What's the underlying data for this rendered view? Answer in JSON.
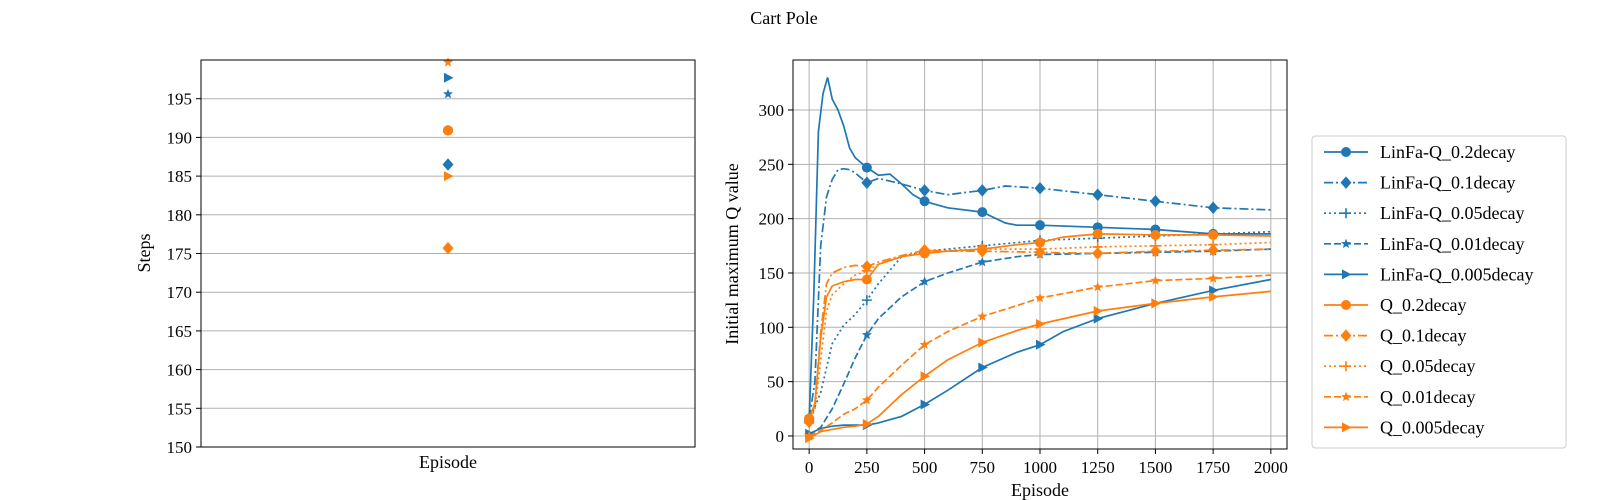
{
  "figure_title": "Cart Pole",
  "colors": {
    "blue": "#1f77b4",
    "orange": "#ff7f0e",
    "grid": "#b0b0b0"
  },
  "chart_data": [
    {
      "type": "scatter",
      "xlabel": "Episode",
      "ylabel": "Steps",
      "ylim": [
        150,
        200
      ],
      "yticks": [
        150,
        155,
        160,
        165,
        170,
        175,
        180,
        185,
        190,
        195
      ],
      "grid": "horizontal",
      "series": [
        {
          "color": "#1f77b4",
          "marker": "circle",
          "y": 190.9
        },
        {
          "color": "#1f77b4",
          "marker": "diamond",
          "y": 186.5
        },
        {
          "color": "#1f77b4",
          "marker": "plus",
          "y": 190.9
        },
        {
          "color": "#1f77b4",
          "marker": "star",
          "y": 195.6
        },
        {
          "color": "#1f77b4",
          "marker": "triangle-right",
          "y": 197.7
        },
        {
          "color": "#ff7f0e",
          "marker": "circle",
          "y": 190.9
        },
        {
          "color": "#ff7f0e",
          "marker": "diamond",
          "y": 175.7
        },
        {
          "color": "#ff7f0e",
          "marker": "plus",
          "y": 190.9
        },
        {
          "color": "#ff7f0e",
          "marker": "star",
          "y": 199.7
        },
        {
          "color": "#ff7f0e",
          "marker": "triangle-right",
          "y": 185.0
        }
      ]
    },
    {
      "type": "line",
      "xlabel": "Episode",
      "ylabel": "Initial maximum Q value",
      "xlim": [
        -70,
        2070
      ],
      "ylim": [
        -12,
        346
      ],
      "xticks": [
        0,
        250,
        500,
        750,
        1000,
        1250,
        1500,
        1750,
        2000
      ],
      "yticks": [
        0,
        50,
        100,
        150,
        200,
        250,
        300
      ],
      "grid": true,
      "legend": "outside-right",
      "series": [
        {
          "name": "LinFa-Q_0.2decay",
          "color": "#1f77b4",
          "linestyle": "solid",
          "marker": "circle",
          "x": [
            0,
            20,
            40,
            60,
            80,
            100,
            125,
            150,
            175,
            200,
            250,
            300,
            350,
            400,
            450,
            500,
            600,
            750,
            850,
            900,
            1000,
            1250,
            1500,
            1750,
            2000
          ],
          "y": [
            16,
            130,
            280,
            315,
            330,
            310,
            300,
            285,
            265,
            256,
            247,
            240,
            241,
            232,
            222,
            216,
            210,
            206,
            196,
            194,
            194,
            192,
            190,
            186,
            186
          ]
        },
        {
          "name": "LinFa-Q_0.1decay",
          "color": "#1f77b4",
          "linestyle": "dashdot",
          "marker": "diamond",
          "x": [
            0,
            25,
            50,
            75,
            100,
            125,
            150,
            175,
            200,
            250,
            300,
            400,
            500,
            600,
            750,
            850,
            1000,
            1250,
            1500,
            1750,
            2000
          ],
          "y": [
            16,
            50,
            175,
            220,
            236,
            245,
            246,
            245,
            242,
            233,
            237,
            232,
            226,
            222,
            226,
            230,
            228,
            222,
            216,
            210,
            208
          ]
        },
        {
          "name": "LinFa-Q_0.05decay",
          "color": "#1f77b4",
          "linestyle": "dotted",
          "marker": "plus",
          "x": [
            0,
            50,
            100,
            150,
            200,
            250,
            300,
            400,
            500,
            750,
            1000,
            1250,
            1500,
            1750,
            2000
          ],
          "y": [
            14,
            40,
            85,
            102,
            112,
            125,
            140,
            165,
            170,
            175,
            180,
            182,
            184,
            186,
            188
          ]
        },
        {
          "name": "LinFa-Q_0.01decay",
          "color": "#1f77b4",
          "linestyle": "dashed",
          "marker": "star",
          "x": [
            0,
            50,
            100,
            150,
            200,
            250,
            300,
            400,
            500,
            600,
            750,
            900,
            1000,
            1250,
            1500,
            1750,
            2000
          ],
          "y": [
            1,
            8,
            25,
            48,
            72,
            93,
            108,
            128,
            142,
            150,
            160,
            165,
            167,
            168,
            169,
            170,
            172
          ]
        },
        {
          "name": "LinFa-Q_0.005decay",
          "color": "#1f77b4",
          "linestyle": "solid",
          "marker": "triangle-right",
          "x": [
            0,
            50,
            100,
            150,
            200,
            250,
            300,
            400,
            500,
            600,
            750,
            900,
            1000,
            1100,
            1250,
            1500,
            1750,
            2000
          ],
          "y": [
            2,
            7,
            9,
            10,
            10,
            10,
            12,
            18,
            29,
            42,
            63,
            77,
            84,
            96,
            108,
            122,
            134,
            144
          ]
        },
        {
          "name": "Q_0.2decay",
          "color": "#ff7f0e",
          "linestyle": "solid",
          "marker": "circle",
          "x": [
            0,
            25,
            50,
            75,
            100,
            150,
            200,
            250,
            300,
            400,
            500,
            600,
            750,
            900,
            1000,
            1100,
            1250,
            1500,
            1750,
            2000
          ],
          "y": [
            16,
            30,
            90,
            128,
            138,
            142,
            144,
            144,
            158,
            165,
            168,
            170,
            172,
            176,
            178,
            183,
            186,
            185,
            185,
            184
          ]
        },
        {
          "name": "Q_0.1decay",
          "color": "#ff7f0e",
          "linestyle": "dashdot",
          "marker": "diamond",
          "x": [
            0,
            25,
            50,
            75,
            100,
            150,
            200,
            250,
            300,
            400,
            500,
            600,
            750,
            1000,
            1250,
            1500,
            1750,
            2000
          ],
          "y": [
            13,
            30,
            95,
            140,
            150,
            155,
            157,
            156,
            160,
            166,
            171,
            170,
            170,
            169,
            168,
            170,
            171,
            172
          ]
        },
        {
          "name": "Q_0.05decay",
          "color": "#ff7f0e",
          "linestyle": "dotted",
          "marker": "plus",
          "x": [
            0,
            25,
            50,
            75,
            100,
            150,
            200,
            250,
            300,
            400,
            500,
            750,
            1000,
            1250,
            1500,
            1750,
            2000
          ],
          "y": [
            12,
            25,
            70,
            115,
            130,
            140,
            148,
            152,
            158,
            165,
            170,
            172,
            172,
            174,
            175,
            176,
            178
          ]
        },
        {
          "name": "Q_0.01decay",
          "color": "#ff7f0e",
          "linestyle": "dashed",
          "marker": "star",
          "x": [
            0,
            50,
            100,
            150,
            200,
            250,
            300,
            400,
            500,
            600,
            750,
            900,
            1000,
            1250,
            1500,
            1750,
            2000
          ],
          "y": [
            0,
            5,
            12,
            20,
            25,
            33,
            45,
            65,
            84,
            96,
            110,
            120,
            127,
            137,
            143,
            145,
            148
          ]
        },
        {
          "name": "Q_0.005decay",
          "color": "#ff7f0e",
          "linestyle": "solid",
          "marker": "triangle-right",
          "x": [
            0,
            50,
            100,
            150,
            200,
            250,
            300,
            400,
            500,
            600,
            750,
            900,
            1000,
            1250,
            1500,
            1750,
            2000
          ],
          "y": [
            -2,
            4,
            6,
            8,
            9,
            11,
            18,
            38,
            55,
            70,
            86,
            97,
            103,
            115,
            122,
            128,
            133
          ]
        }
      ]
    }
  ]
}
